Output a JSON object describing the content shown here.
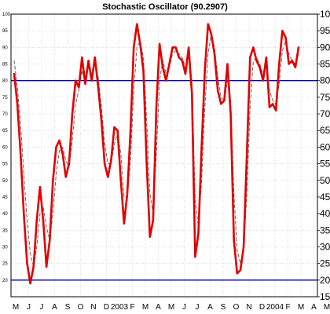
{
  "chart_data": {
    "type": "line",
    "title": "Stochastic Oscillator (90.2907)",
    "xlabel": "",
    "ylabel": "",
    "ylim": [
      15,
      100
    ],
    "y_ticks_left": [
      20,
      25,
      30,
      35,
      40,
      45,
      50,
      55,
      60,
      65,
      70,
      75,
      80,
      85,
      90,
      95,
      100
    ],
    "y_ticks_right": [
      15,
      20,
      25,
      30,
      35,
      40,
      45,
      50,
      55,
      60,
      65,
      70,
      75,
      80,
      85,
      90,
      95,
      100
    ],
    "x_tick_labels": [
      "M",
      "J",
      "J",
      "A",
      "S",
      "O",
      "N",
      "D",
      "2003",
      "F",
      "M",
      "A",
      "M",
      "J",
      "J",
      "A",
      "S",
      "O",
      "N",
      "D",
      "2004",
      "F",
      "M",
      "A",
      "M"
    ],
    "reference_lines": [
      20,
      80
    ],
    "grid": true,
    "series": [
      {
        "color": "#e00000",
        "values": [
          82,
          73,
          58,
          40,
          25,
          19,
          24,
          38,
          48,
          38,
          24,
          32,
          50,
          60,
          62,
          58,
          51,
          55,
          70,
          80,
          78,
          87,
          79,
          86,
          80,
          87,
          78,
          68,
          55,
          51,
          56,
          66,
          65,
          50,
          37,
          46,
          65,
          90,
          97,
          91,
          83,
          55,
          33,
          38,
          72,
          91,
          84,
          80,
          85,
          90,
          90,
          87,
          86,
          82,
          90,
          76,
          27,
          34,
          60,
          83,
          97,
          94,
          88,
          77,
          73,
          74,
          85,
          70,
          32,
          22,
          23,
          30,
          58,
          87,
          90,
          86,
          84,
          80,
          87,
          72,
          73,
          71,
          85,
          95,
          93,
          85,
          86,
          84,
          90
        ]
      },
      {
        "color": "#7a4a4a",
        "values": [
          86,
          78,
          67,
          52,
          38,
          28,
          24,
          30,
          40,
          42,
          36,
          32,
          40,
          52,
          59,
          60,
          56,
          54,
          62,
          73,
          77,
          83,
          80,
          84,
          81,
          85,
          81,
          72,
          61,
          55,
          55,
          61,
          64,
          58,
          45,
          45,
          56,
          77,
          90,
          92,
          87,
          68,
          46,
          40,
          58,
          80,
          86,
          82,
          84,
          88,
          89,
          88,
          87,
          84,
          87,
          80,
          44,
          36,
          50,
          72,
          88,
          94,
          90,
          81,
          75,
          74,
          80,
          74,
          46,
          29,
          25,
          29,
          46,
          72,
          86,
          87,
          85,
          82,
          84,
          77,
          74,
          73,
          79,
          89,
          92,
          88,
          86,
          85,
          88
        ]
      }
    ]
  }
}
